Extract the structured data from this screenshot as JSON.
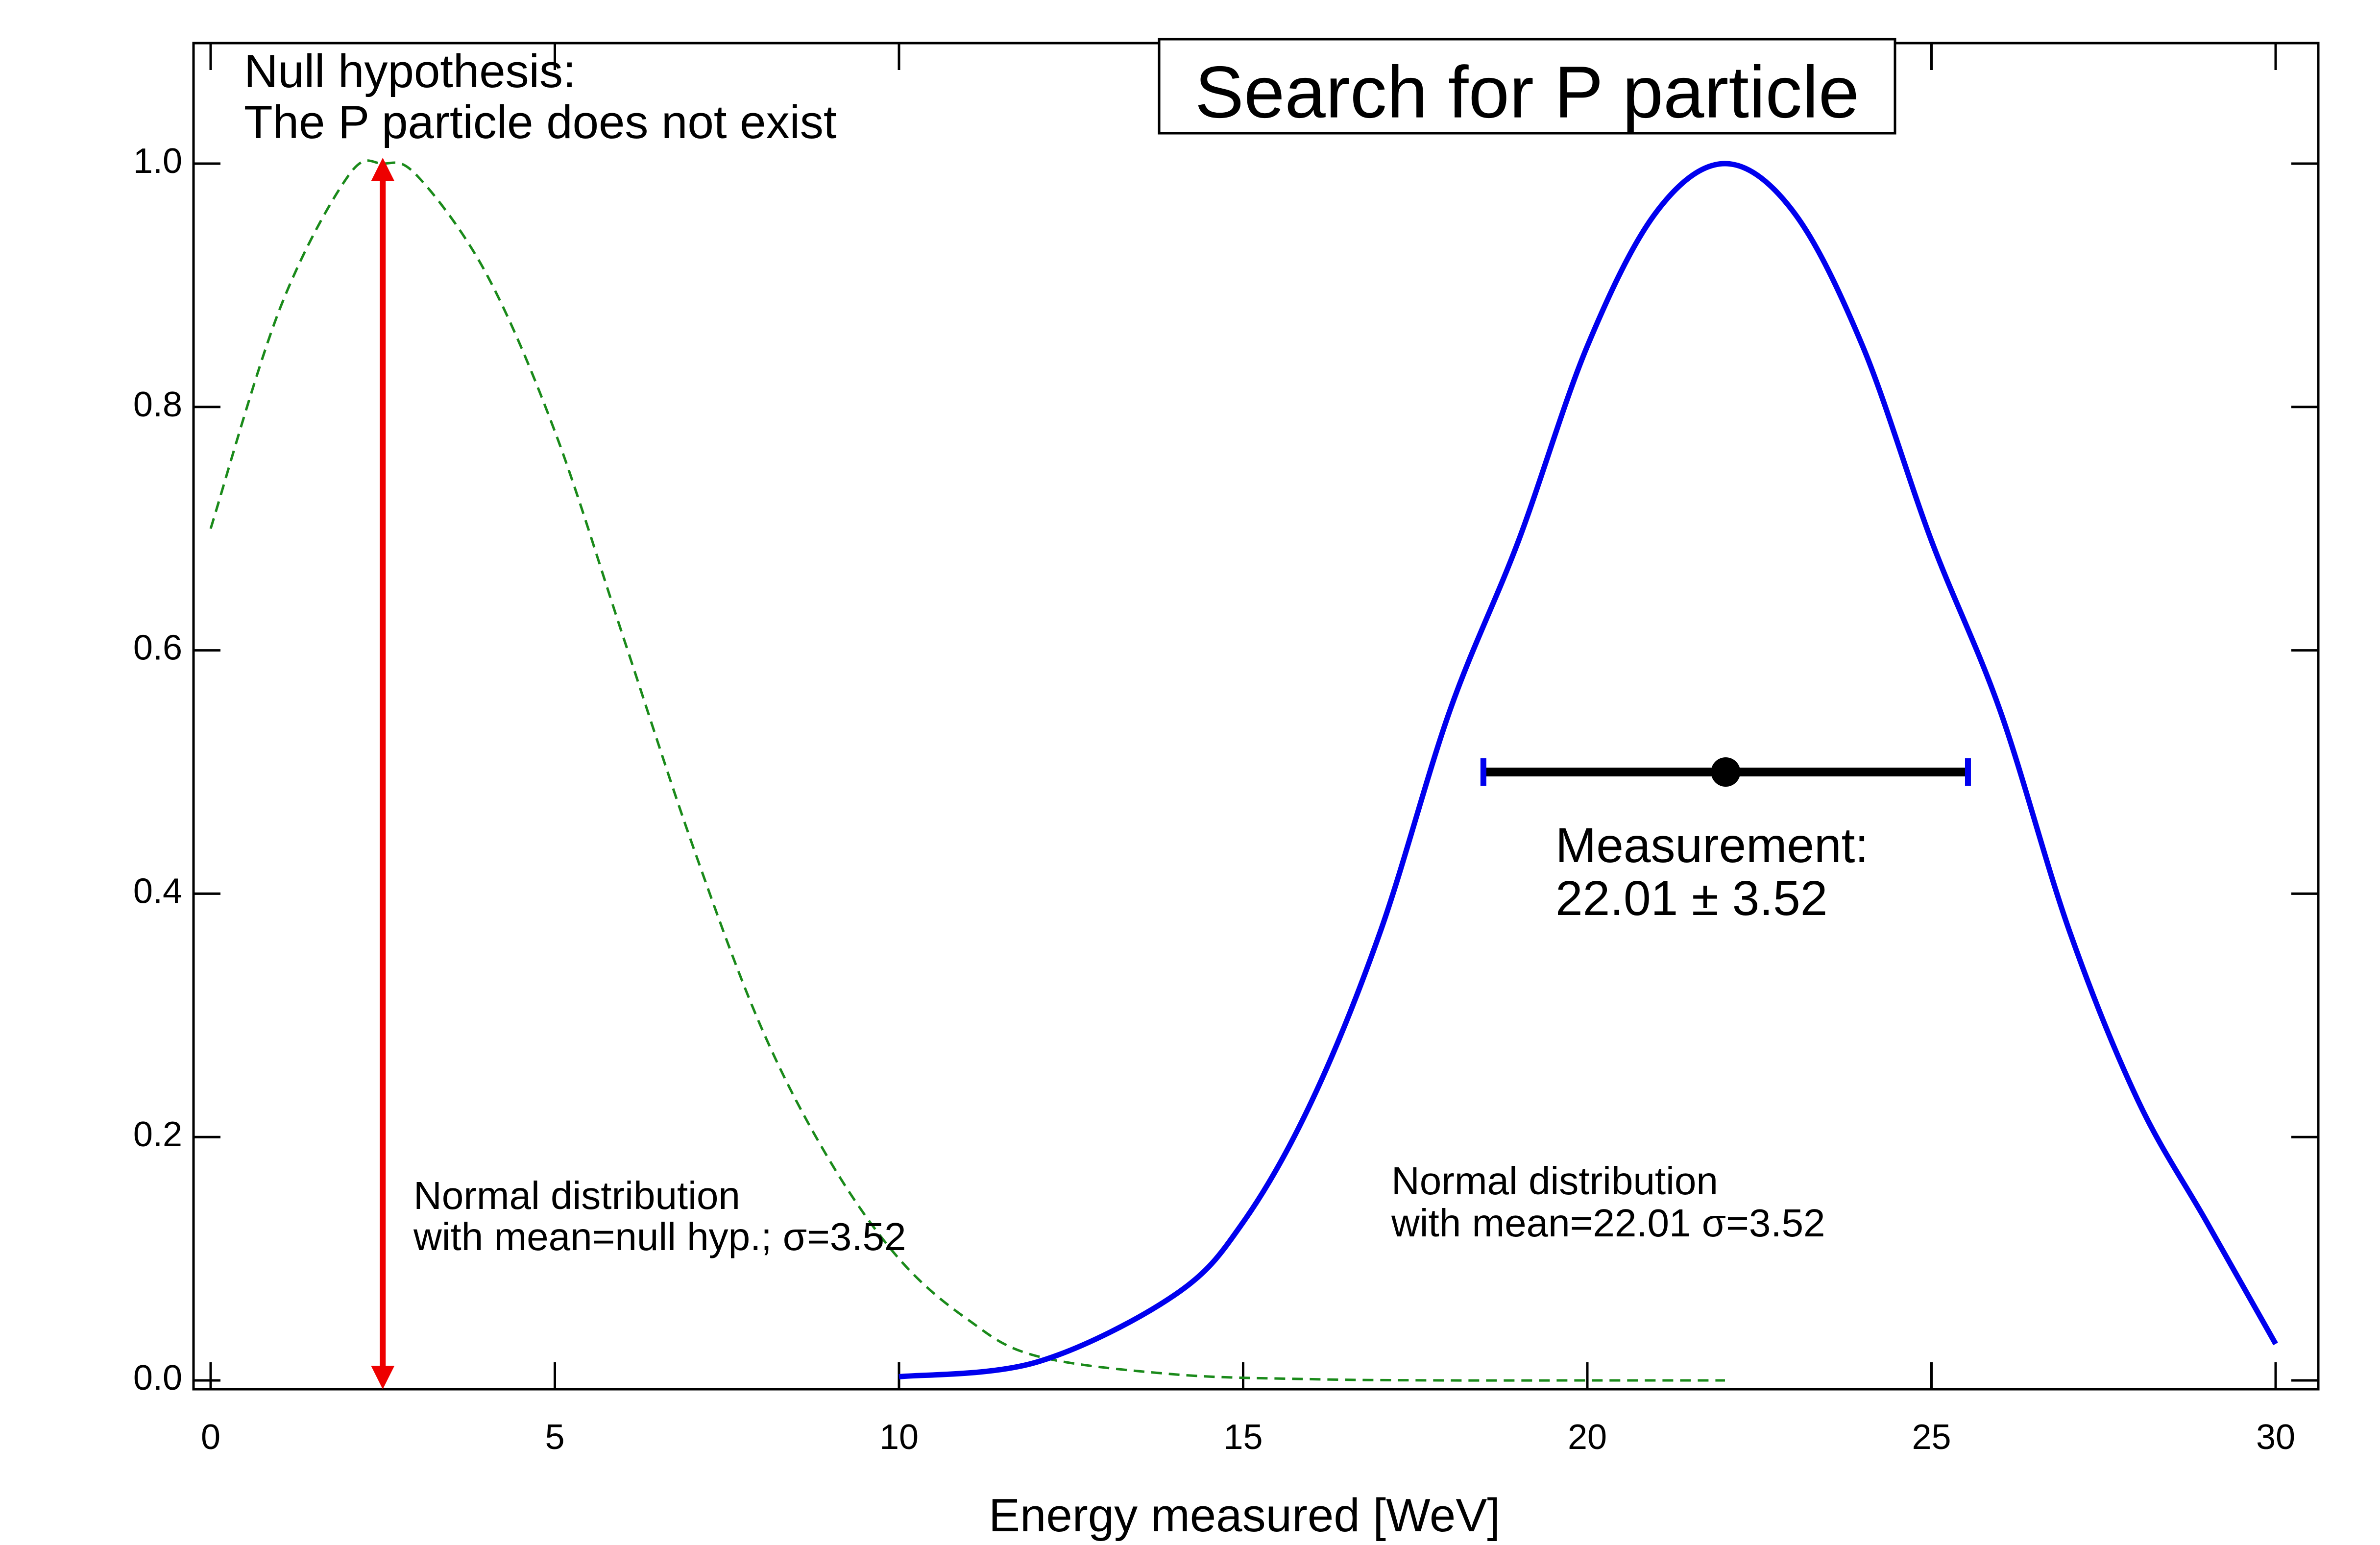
{
  "chart_data": {
    "type": "line",
    "title": "Search for P particle",
    "xlabel": "Energy measured [WeV]",
    "ylabel": "",
    "xlim": [
      0,
      30
    ],
    "ylim": [
      0,
      1.1
    ],
    "xticks": [
      0,
      5,
      10,
      15,
      20,
      25,
      30
    ],
    "xtick_labels": [
      "0",
      "5",
      "10",
      "15",
      "20",
      "25",
      "30"
    ],
    "yticks": [
      0,
      0.2,
      0.4,
      0.6,
      0.8,
      1.0
    ],
    "ytick_labels": [
      "0.0",
      "0.2",
      "0.4",
      "0.6",
      "0.8",
      "1.0"
    ],
    "grid": false,
    "series": [
      {
        "line_style": "dashed",
        "color": "#1a8a1a",
        "x": [
          0,
          1,
          2,
          2.5,
          3,
          4,
          5,
          6,
          7,
          8,
          9,
          10,
          11,
          12,
          14,
          16,
          18,
          20,
          22
        ],
        "values": [
          0.7,
          0.88,
          0.99,
          1.0,
          0.99,
          0.91,
          0.78,
          0.61,
          0.44,
          0.29,
          0.18,
          0.1,
          0.05,
          0.02,
          0.005,
          0.001,
          0.0,
          0.0,
          0.0
        ]
      },
      {
        "line_style": "solid",
        "color": "#0000ee",
        "x": [
          10,
          12,
          14,
          15,
          16,
          17,
          18,
          18.5,
          19,
          20,
          21,
          22,
          23,
          24,
          25,
          25.5,
          26,
          27,
          28,
          29,
          30
        ],
        "values": [
          0.003,
          0.015,
          0.07,
          0.13,
          0.23,
          0.37,
          0.55,
          0.5,
          0.69,
          0.85,
          0.96,
          1.0,
          0.96,
          0.85,
          0.69,
          0.5,
          0.55,
          0.37,
          0.23,
          0.13,
          0.03
        ]
      }
    ],
    "measurement": {
      "value": 22.01,
      "error": 3.52,
      "y": 0.5,
      "color": "#000000"
    },
    "null_hypothesis": {
      "x": 2.5,
      "y_from": 0.0,
      "y_to": 1.0,
      "color": "#ee0000"
    },
    "annotations": {
      "null_line1": "Null hypothesis:",
      "null_line2": "The P particle does not exist",
      "null_dist_line1": "Normal distribution",
      "null_dist_line2": "with mean=null hyp.; σ=3.52",
      "meas_dist_line1": "Normal distribution",
      "meas_dist_line2": "with mean=22.01 σ=3.52",
      "measurement_line1": "Measurement:",
      "measurement_line2": "22.01 ± 3.52"
    }
  }
}
